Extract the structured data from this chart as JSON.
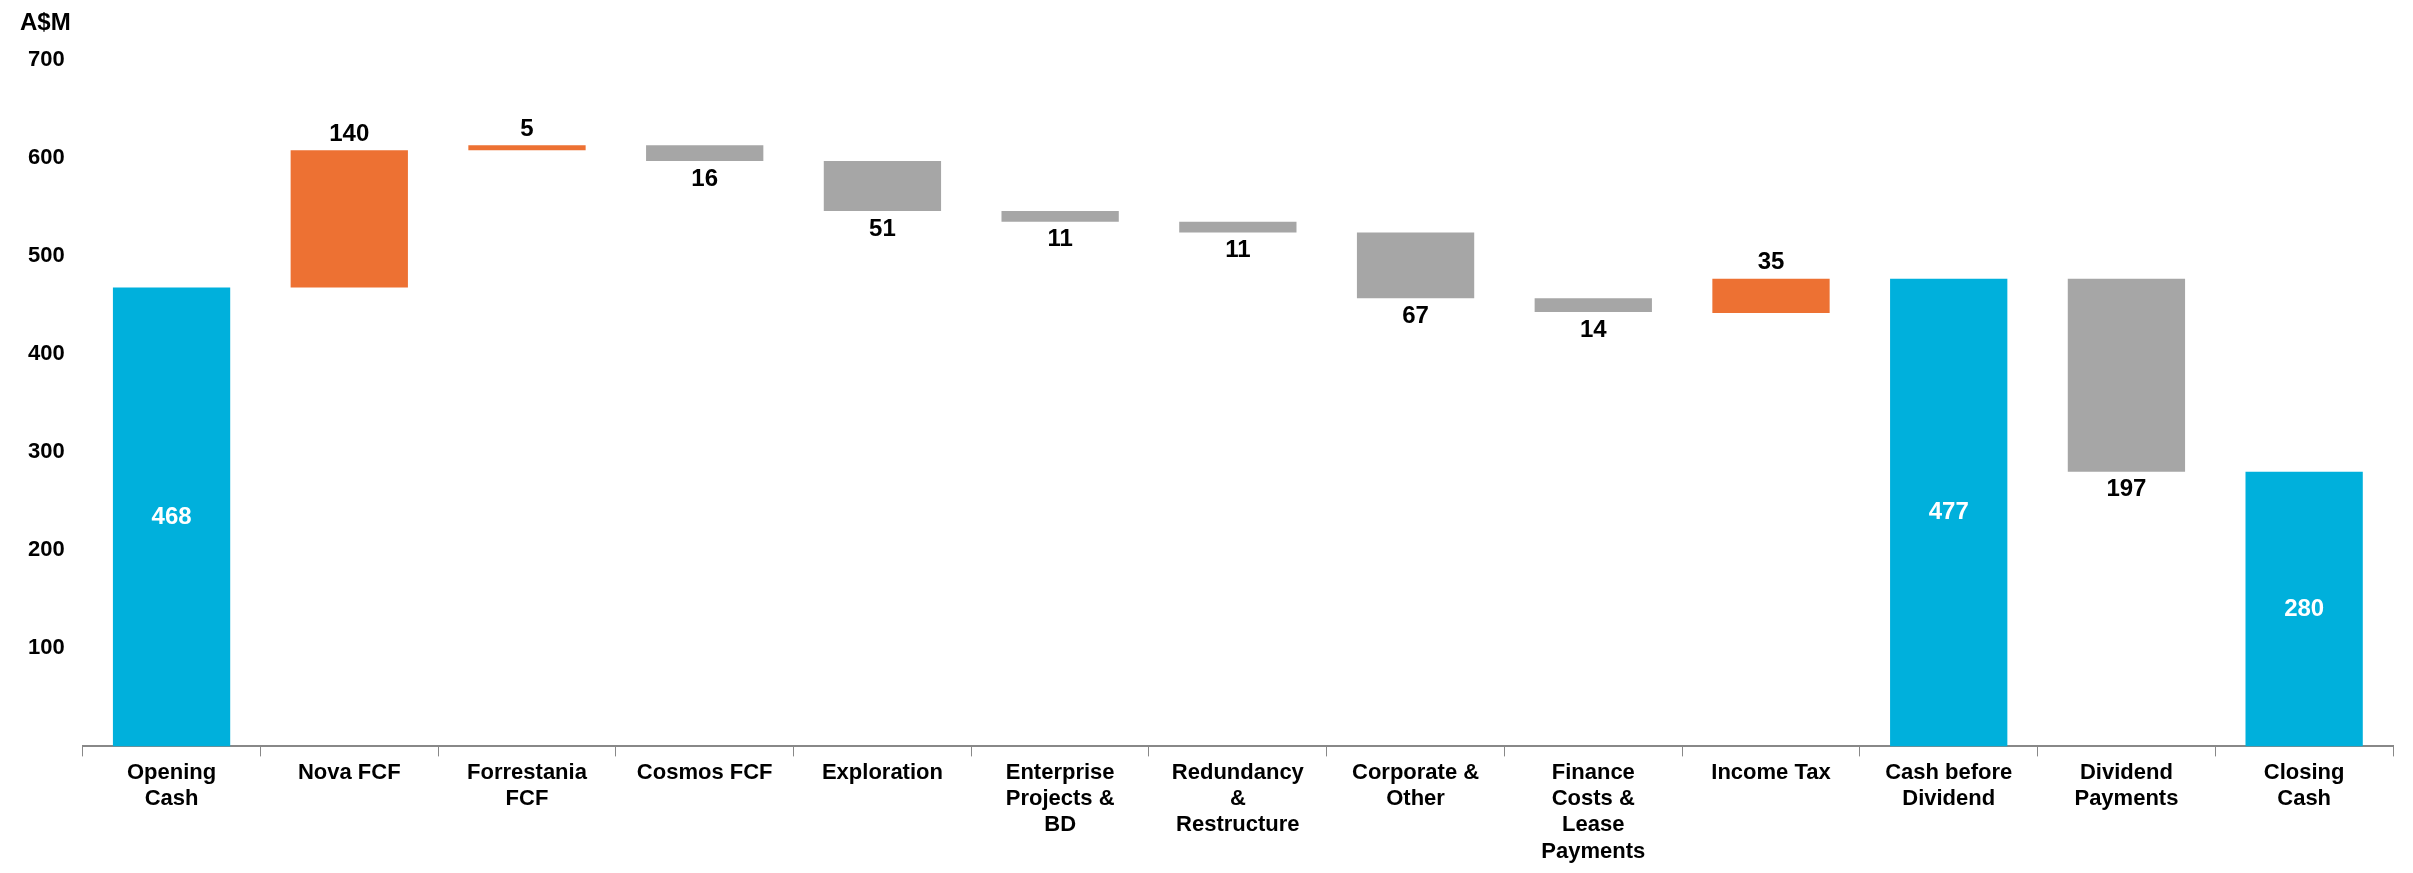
{
  "chart_data": {
    "type": "bar",
    "ylabel": "A$M",
    "categories": [
      "Opening Cash",
      "Nova FCF",
      "Forrestania FCF",
      "Cosmos FCF",
      "Exploration",
      "Enterprise Projects & BD",
      "Redundancy & Restructure",
      "Corporate & Other",
      "Finance Costs & Lease Payments",
      "Income Tax",
      "Cash before Dividend",
      "Dividend Payments",
      "Closing Cash"
    ],
    "values": [
      468,
      140,
      5,
      -16,
      -51,
      -11,
      -11,
      -67,
      -14,
      35,
      477,
      -197,
      280
    ],
    "base": [
      0,
      468,
      608,
      613,
      597,
      546,
      535,
      524,
      457,
      442,
      0,
      477,
      0
    ],
    "value_labels": [
      "468",
      "140",
      "5",
      "16",
      "51",
      "11",
      "11",
      "67",
      "14",
      "35",
      "477",
      "197",
      "280"
    ],
    "colors": [
      "#00b0dc",
      "#ed7133",
      "#ed7133",
      "#a6a6a6",
      "#a6a6a6",
      "#a6a6a6",
      "#a6a6a6",
      "#a6a6a6",
      "#a6a6a6",
      "#ed7133",
      "#00b0dc",
      "#a6a6a6",
      "#00b0dc"
    ],
    "ylim": [
      0,
      700
    ],
    "yticks": [
      100,
      200,
      300,
      400,
      500,
      600,
      700
    ],
    "grid": false,
    "legend": false
  }
}
